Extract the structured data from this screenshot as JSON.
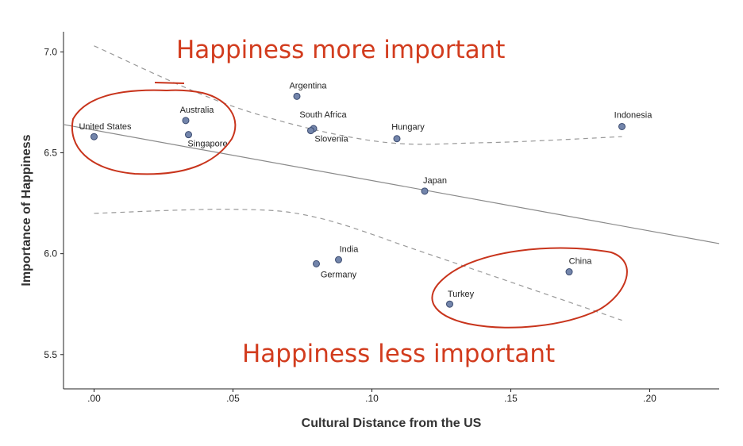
{
  "chart_data": {
    "type": "scatter",
    "xlabel": "Cultural Distance from the US",
    "ylabel": "Importance of Happiness",
    "xlim": [
      -0.011,
      0.225
    ],
    "ylim": [
      5.33,
      7.1
    ],
    "x_ticks": [
      0.0,
      0.05,
      0.1,
      0.15,
      0.2
    ],
    "x_tick_labels": [
      ".00",
      ".05",
      ".10",
      ".15",
      ".20"
    ],
    "y_ticks": [
      5.5,
      6.0,
      6.5,
      7.0
    ],
    "y_tick_labels": [
      "5.5",
      "6.0",
      "6.5",
      "7.0"
    ],
    "grid": false,
    "points": [
      {
        "label": "United States",
        "x": 0.0,
        "y": 6.58
      },
      {
        "label": "Australia",
        "x": 0.033,
        "y": 6.66
      },
      {
        "label": "Singapore",
        "x": 0.034,
        "y": 6.59
      },
      {
        "label": "Argentina",
        "x": 0.073,
        "y": 6.78
      },
      {
        "label": "South Africa",
        "x": 0.079,
        "y": 6.62
      },
      {
        "label": "Slovenia",
        "x": 0.078,
        "y": 6.61
      },
      {
        "label": "Hungary",
        "x": 0.109,
        "y": 6.57
      },
      {
        "label": "Indonesia",
        "x": 0.19,
        "y": 6.63
      },
      {
        "label": "Japan",
        "x": 0.119,
        "y": 6.31
      },
      {
        "label": "India",
        "x": 0.088,
        "y": 5.97
      },
      {
        "label": "Germany",
        "x": 0.08,
        "y": 5.95
      },
      {
        "label": "China",
        "x": 0.171,
        "y": 5.91
      },
      {
        "label": "Turkey",
        "x": 0.128,
        "y": 5.75
      }
    ],
    "fit_line": {
      "x": [
        -0.011,
        0.225
      ],
      "y": [
        6.64,
        6.05
      ]
    },
    "ci_upper": {
      "x": [
        0.0,
        0.05,
        0.1,
        0.14,
        0.19
      ],
      "y": [
        7.03,
        6.73,
        6.56,
        6.55,
        6.58
      ]
    },
    "ci_lower": {
      "x": [
        0.0,
        0.05,
        0.08,
        0.12,
        0.19
      ],
      "y": [
        6.2,
        6.22,
        6.18,
        6.0,
        5.67
      ]
    },
    "annotations": {
      "top": "Happiness more important",
      "bottom": "Happiness less important"
    }
  },
  "colors": {
    "point_fill": "#7385ab",
    "point_stroke": "#3b4b70",
    "fit_line": "#8a8a8a",
    "ci_line": "#999999",
    "annotation": "#d23c1e",
    "circle": "#c8341c"
  }
}
